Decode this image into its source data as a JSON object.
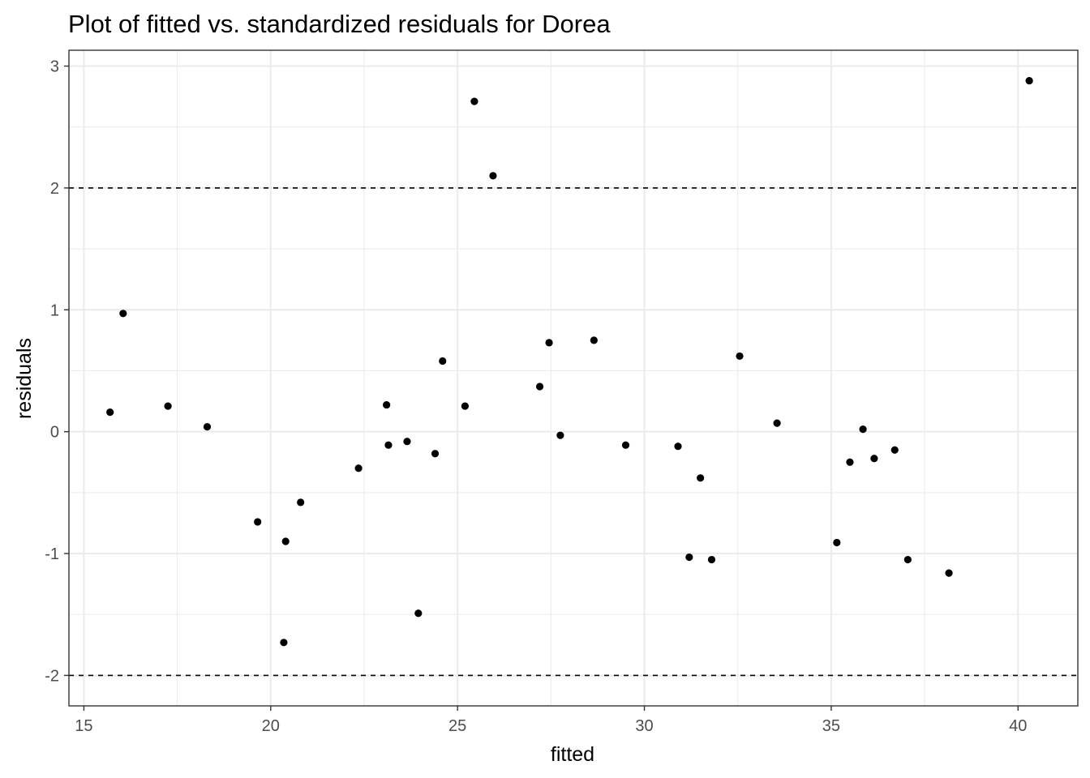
{
  "chart_data": {
    "type": "scatter",
    "title": "Plot of fitted vs. standardized residuals for Dorea",
    "xlabel": "fitted",
    "ylabel": "residuals",
    "xlim": [
      14.6,
      41.6
    ],
    "ylim": [
      -2.25,
      3.13
    ],
    "xticks": [
      15,
      20,
      25,
      30,
      35,
      40
    ],
    "yticks": [
      -2,
      -1,
      0,
      1,
      2,
      3
    ],
    "reference_lines": [
      2,
      -2
    ],
    "grid": true,
    "x": [
      15.7,
      16.05,
      17.25,
      18.3,
      19.65,
      20.35,
      20.4,
      20.8,
      22.35,
      23.1,
      23.15,
      23.65,
      23.95,
      24.4,
      24.6,
      25.2,
      25.45,
      25.95,
      27.2,
      27.45,
      27.75,
      28.65,
      29.5,
      30.9,
      31.2,
      31.5,
      31.8,
      32.55,
      33.55,
      35.15,
      35.5,
      35.85,
      36.15,
      36.7,
      37.05,
      38.15,
      40.3
    ],
    "y": [
      0.16,
      0.97,
      0.21,
      0.04,
      -0.74,
      -1.73,
      -0.9,
      -0.58,
      -0.3,
      0.22,
      -0.11,
      -0.08,
      -1.49,
      -0.18,
      0.58,
      0.21,
      2.71,
      2.1,
      0.37,
      0.73,
      -0.03,
      0.75,
      -0.11,
      -0.12,
      -1.03,
      -0.38,
      -1.05,
      0.62,
      0.07,
      -0.91,
      -0.25,
      0.02,
      -0.22,
      -0.15,
      -1.05,
      -1.16,
      2.88
    ],
    "point_color": "#000000",
    "panel_border_color": "#333333",
    "grid_color": "#ebebeb"
  }
}
